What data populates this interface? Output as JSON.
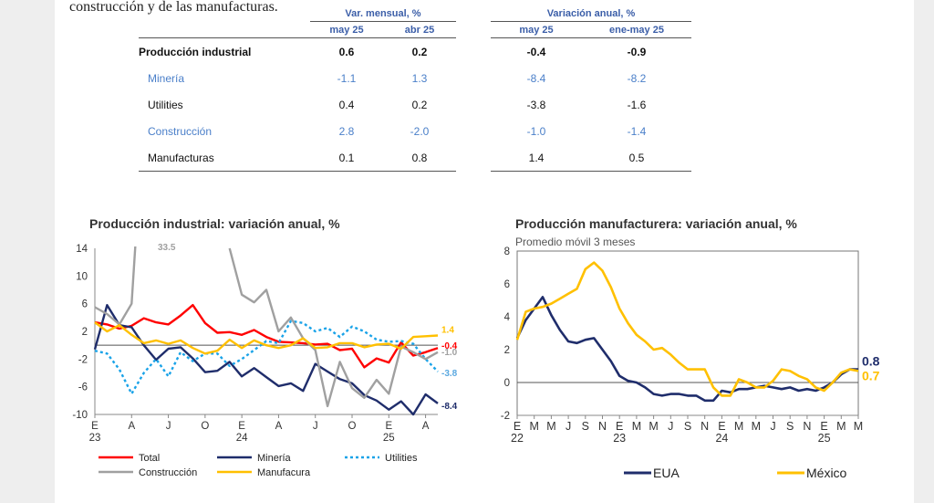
{
  "intro_text": "construcción y de las manufacturas.",
  "table": {
    "group_headers": [
      "Var. mensual, %",
      "Variación anual, %"
    ],
    "columns": [
      "may 25",
      "abr 25",
      "may 25",
      "ene-may 25"
    ],
    "rows": [
      {
        "label": "Producción industrial",
        "values": [
          "0.6",
          "0.2",
          "-0.4",
          "-0.9"
        ],
        "style": "bold"
      },
      {
        "label": "Minería",
        "values": [
          "-1.1",
          "1.3",
          "-8.4",
          "-8.2"
        ],
        "style": "blue"
      },
      {
        "label": "Utilities",
        "values": [
          "0.4",
          "0.2",
          "-3.8",
          "-1.6"
        ],
        "style": "plain"
      },
      {
        "label": "Construcción",
        "values": [
          "2.8",
          "-2.0",
          "-1.0",
          "-1.4"
        ],
        "style": "blue"
      },
      {
        "label": "Manufacturas",
        "values": [
          "0.1",
          "0.8",
          "1.4",
          "0.5"
        ],
        "style": "plain"
      }
    ]
  },
  "chart_data": [
    {
      "type": "line",
      "title": "Producción industrial: variación anual, %",
      "ylim": [
        -10,
        14
      ],
      "y_ticks": [
        14,
        10,
        6,
        2,
        -2,
        -6,
        -10
      ],
      "x_ticks": [
        {
          "label": "E",
          "year": "23",
          "i": 0
        },
        {
          "label": "A",
          "i": 3
        },
        {
          "label": "J",
          "i": 6
        },
        {
          "label": "O",
          "i": 9
        },
        {
          "label": "E",
          "year": "24",
          "i": 12
        },
        {
          "label": "A",
          "i": 15
        },
        {
          "label": "J",
          "i": 18
        },
        {
          "label": "O",
          "i": 21
        },
        {
          "label": "E",
          "year": "25",
          "i": 24
        },
        {
          "label": "A",
          "i": 27
        }
      ],
      "x_count": 29,
      "series": [
        {
          "name": "Total",
          "color": "#ff0000",
          "dash": "",
          "values": [
            3.3,
            3.0,
            2.4,
            2.8,
            3.9,
            3.3,
            3.0,
            4.3,
            5.8,
            3.2,
            1.8,
            1.9,
            1.5,
            2.2,
            1.2,
            0.5,
            0.4,
            0.3,
            0.1,
            0.2,
            -0.7,
            -0.5,
            -3.2,
            -1.9,
            -2.5,
            0.4,
            -1.5,
            -1.0,
            -0.4
          ],
          "end_label": "-0.4"
        },
        {
          "name": "Minería",
          "color": "#1f2d6b",
          "dash": "",
          "values": [
            -0.6,
            5.8,
            2.9,
            2.6,
            0.0,
            -2.1,
            -0.5,
            -0.3,
            -1.9,
            -3.9,
            -3.7,
            -2.4,
            -4.5,
            -3.3,
            -4.6,
            -5.9,
            -5.5,
            -6.6,
            -2.7,
            -3.8,
            -4.9,
            -5.5,
            -7.2,
            -8.0,
            -9.3,
            -8.1,
            -10.0,
            -7.1,
            -8.4
          ],
          "end_label": "-8.4"
        },
        {
          "name": "Utilities",
          "color": "#1aa3e8",
          "dash": "3 3",
          "values": [
            -0.8,
            -1.2,
            -3.5,
            -7.0,
            -4.0,
            -2.0,
            -4.5,
            -1.0,
            -2.3,
            -1.2,
            -1.2,
            -3.0,
            -2.0,
            -0.7,
            0.6,
            0.3,
            3.5,
            3.2,
            2.0,
            2.5,
            1.2,
            2.7,
            2.0,
            0.8,
            0.5,
            0.6,
            0.2,
            -2.0,
            -3.8
          ],
          "end_label": "-3.8"
        },
        {
          "name": "Construcción",
          "color": "#a0a0a0",
          "dash": "",
          "values": [
            5.5,
            4.5,
            3.0,
            6.0,
            33.5,
            null,
            null,
            null,
            null,
            null,
            null,
            14.0,
            7.3,
            6.2,
            8.0,
            2.0,
            4.0,
            1.0,
            -0.7,
            -8.8,
            -2.4,
            -6.2,
            -7.6,
            -5.0,
            -7.0,
            -0.2,
            -1.0,
            -2.0,
            -1.0
          ],
          "end_label": "-1.0",
          "peak_label": "33.5"
        },
        {
          "name": "Manufacura",
          "color": "#ffc000",
          "dash": "",
          "values": [
            3.3,
            2.0,
            2.9,
            1.5,
            0.3,
            0.7,
            0.2,
            0.7,
            -0.4,
            -1.2,
            -0.8,
            0.8,
            -0.4,
            0.7,
            0.0,
            -0.4,
            0.0,
            1.0,
            -0.4,
            -0.3,
            0.3,
            0.3,
            -0.3,
            0.1,
            0.2,
            -0.5,
            1.2,
            1.3,
            1.4
          ],
          "end_label": "1.4"
        }
      ]
    },
    {
      "type": "line",
      "title": "Producción manufacturera:  variación anual, %",
      "subtitle": "Promedio móvil 3 meses",
      "ylim": [
        -2,
        8
      ],
      "y_ticks": [
        8,
        6,
        4,
        2,
        0,
        -2
      ],
      "x_ticks": [
        {
          "label": "E",
          "year": "22",
          "i": 0
        },
        {
          "label": "M",
          "i": 2
        },
        {
          "label": "M",
          "i": 4
        },
        {
          "label": "J",
          "i": 6
        },
        {
          "label": "S",
          "i": 8
        },
        {
          "label": "N",
          "i": 10
        },
        {
          "label": "E",
          "year": "23",
          "i": 12
        },
        {
          "label": "M",
          "i": 14
        },
        {
          "label": "M",
          "i": 16
        },
        {
          "label": "J",
          "i": 18
        },
        {
          "label": "S",
          "i": 20
        },
        {
          "label": "N",
          "i": 22
        },
        {
          "label": "E",
          "year": "24",
          "i": 24
        },
        {
          "label": "M",
          "i": 26
        },
        {
          "label": "M",
          "i": 28
        },
        {
          "label": "J",
          "i": 30
        },
        {
          "label": "S",
          "i": 32
        },
        {
          "label": "N",
          "i": 34
        },
        {
          "label": "E",
          "year": "25",
          "i": 36
        },
        {
          "label": "M",
          "i": 38
        },
        {
          "label": "M",
          "i": 40
        }
      ],
      "x_count": 41,
      "series": [
        {
          "name": "EUA",
          "color": "#1f2d6b",
          "values": [
            2.7,
            3.8,
            4.5,
            5.2,
            4.1,
            3.2,
            2.5,
            2.4,
            2.6,
            2.7,
            2.0,
            1.3,
            0.4,
            0.1,
            0.0,
            -0.3,
            -0.7,
            -0.8,
            -0.7,
            -0.7,
            -0.8,
            -0.8,
            -1.1,
            -1.1,
            -0.5,
            -0.6,
            -0.4,
            -0.4,
            -0.3,
            -0.2,
            -0.3,
            -0.4,
            -0.3,
            -0.5,
            -0.4,
            -0.5,
            -0.3,
            0.0,
            0.5,
            0.8,
            0.8
          ],
          "end_label": "0.8"
        },
        {
          "name": "México",
          "color": "#ffc000",
          "values": [
            2.6,
            4.3,
            4.5,
            4.6,
            4.8,
            5.1,
            5.4,
            5.7,
            6.9,
            7.3,
            6.8,
            5.8,
            4.5,
            3.6,
            2.9,
            2.5,
            2.0,
            2.1,
            1.7,
            1.2,
            0.8,
            0.8,
            0.8,
            -0.3,
            -0.8,
            -0.8,
            0.2,
            0.0,
            -0.3,
            -0.3,
            0.1,
            0.8,
            0.7,
            0.4,
            0.2,
            -0.3,
            -0.5,
            0.0,
            0.6,
            0.8,
            0.7
          ],
          "end_label": "0.7"
        }
      ]
    }
  ]
}
